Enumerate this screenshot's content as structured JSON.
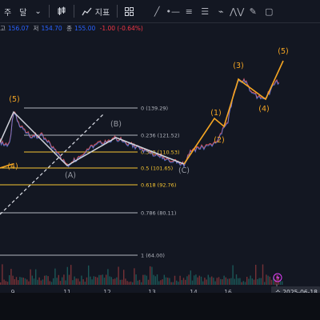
{
  "toolbar": {
    "items": [
      "주",
      "달"
    ],
    "indicator_label": "지표"
  },
  "ohlc": {
    "high_label": "고",
    "high": "156.07",
    "low_label": "저",
    "low": "154.70",
    "close_label": "종",
    "close": "155.00",
    "change": "-1.00 (-0.64%)"
  },
  "chart_data": {
    "type": "line",
    "fib_levels": [
      {
        "ratio": "0",
        "value": 139.29,
        "label": "0 (139.29)",
        "color": "#b2b5be"
      },
      {
        "ratio": "0.236",
        "value": 121.52,
        "label": "0.236 (121.52)",
        "color": "#b2b5be"
      },
      {
        "ratio": "0.382",
        "value": 110.53,
        "label": "0.382 (110.53)",
        "color": "#f7c531"
      },
      {
        "ratio": "0.5",
        "value": 101.65,
        "label": "0.5 (101.65)",
        "color": "#f7c531"
      },
      {
        "ratio": "0.618",
        "value": 92.76,
        "label": "0.618 (92.76)",
        "color": "#f7c531"
      },
      {
        "ratio": "0.786",
        "value": 80.11,
        "label": "0.786 (80.11)",
        "color": "#b2b5be"
      },
      {
        "ratio": "1",
        "value": 64.0,
        "label": "1 (64.00)",
        "color": "#b2b5be"
      }
    ],
    "waves": [
      {
        "label": "(5)",
        "color": "#f5a623"
      },
      {
        "label": "(4)",
        "color": "#f5a623"
      },
      {
        "label": "(A)",
        "color": "#9598a1"
      },
      {
        "label": "(B)",
        "color": "#9598a1"
      },
      {
        "label": "(C)",
        "color": "#9598a1"
      },
      {
        "label": "(1)",
        "color": "#f5a623"
      },
      {
        "label": "(2)",
        "color": "#f5a623"
      },
      {
        "label": "(3)",
        "color": "#f5a623"
      },
      {
        "label": "(4)",
        "color": "#f5a623"
      },
      {
        "label": "(5)",
        "color": "#f5a623"
      }
    ],
    "x_ticks": [
      "9",
      "11",
      "12",
      "13",
      "14",
      "16"
    ],
    "cursor_date": "수 2025-06-18"
  }
}
